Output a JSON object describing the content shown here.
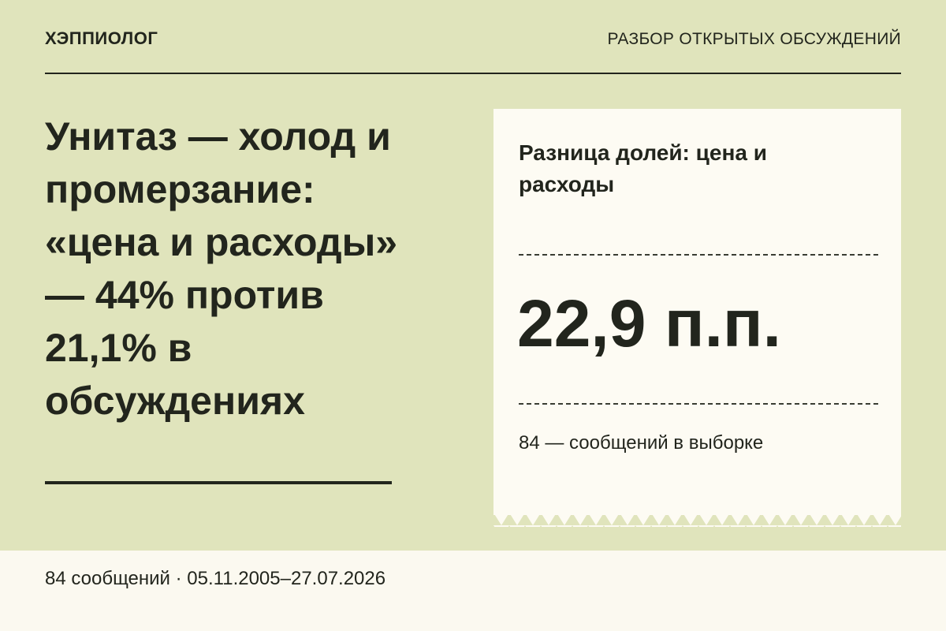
{
  "header": {
    "brand": "ХЭППИОЛОГ",
    "section": "РАЗБОР ОТКРЫТЫХ ОБСУЖДЕНИЙ"
  },
  "headline": "Унитаз — холод и промерзание: «цена и расходы» — 44% против 21,1% в обсуждениях",
  "card": {
    "label": "Разница долей: цена и расходы",
    "value": "22,9 п.п.",
    "note": "84 — сообщений в выборке"
  },
  "footer": {
    "text": "84 сообщений · 05.11.2005–27.07.2026"
  }
}
